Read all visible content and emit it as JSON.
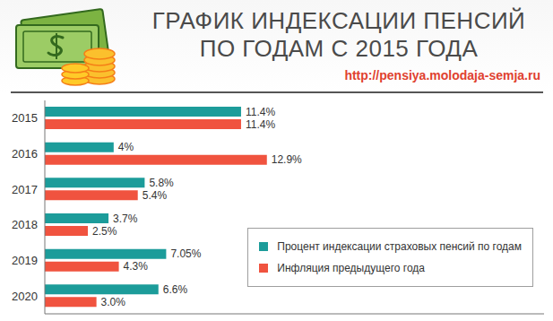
{
  "chart_data": {
    "type": "bar",
    "title": "ГРАФИК ИНДЕКСАЦИИ ПЕНСИЙ ПО ГОДАМ С 2015 ГОДА",
    "subtitle": "http://pensiya.molodaja-semja.ru",
    "orientation": "horizontal",
    "categories": [
      "2015",
      "2016",
      "2017",
      "2018",
      "2019",
      "2020"
    ],
    "series": [
      {
        "name": "Процент индексации страховых пенсий по годам",
        "color": "#1c9c9a",
        "values": [
          11.4,
          4,
          5.8,
          3.7,
          7.05,
          6.6
        ],
        "value_labels": [
          "11.4%",
          "4%",
          "5.8%",
          "3.7%",
          "7.05%",
          "6.6%"
        ]
      },
      {
        "name": "Инфляция предыдущего года",
        "color": "#f0533f",
        "values": [
          11.4,
          12.9,
          5.4,
          2.5,
          4.3,
          3.0
        ],
        "value_labels": [
          "11.4%",
          "12.9%",
          "5.4%",
          "2.5%",
          "4.3%",
          "3.0%"
        ]
      }
    ],
    "xlim": [
      0,
      29
    ],
    "data_labels": true,
    "tick_labels": "y",
    "grid": false,
    "legend": "bottom-right"
  }
}
